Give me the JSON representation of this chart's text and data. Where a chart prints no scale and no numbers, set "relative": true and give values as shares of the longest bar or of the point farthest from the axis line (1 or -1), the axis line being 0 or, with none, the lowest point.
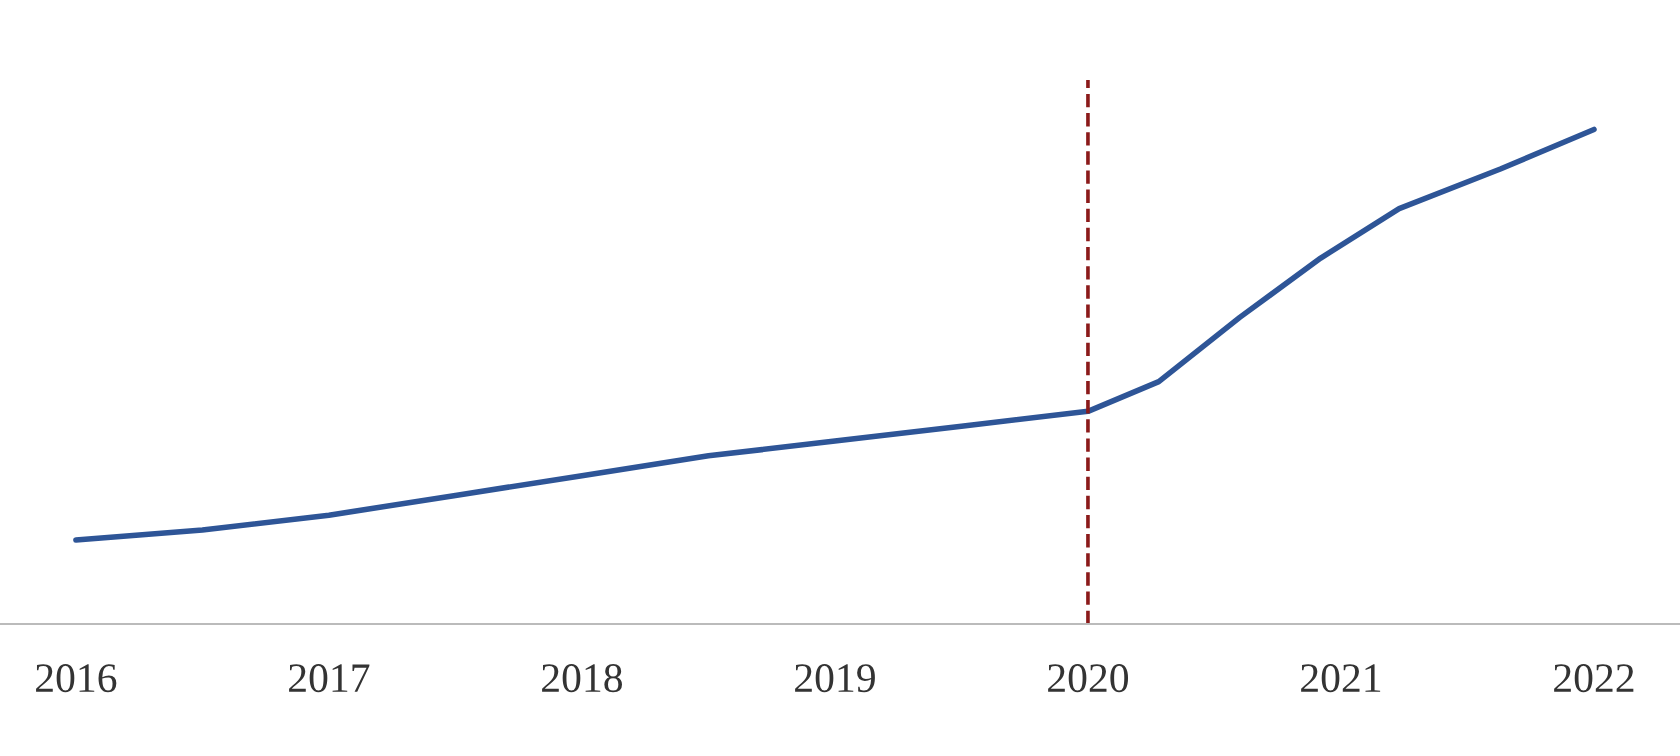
{
  "chart_data": {
    "type": "line",
    "relative": true,
    "xlim": [
      2015.7,
      2022.34
    ],
    "xticks": [
      2016,
      2017,
      2018,
      2019,
      2020,
      2021,
      2022
    ],
    "series": [
      {
        "color": "#2e5597",
        "x": [
          2016,
          2016.5,
          2017,
          2017.5,
          2018,
          2018.5,
          2019,
          2019.5,
          2020,
          2020.28,
          2020.6,
          2020.92,
          2021.23,
          2021.63,
          2022
        ],
        "values": [
          0.17,
          0.19,
          0.22,
          0.26,
          0.3,
          0.34,
          0.37,
          0.4,
          0.43,
          0.49,
          0.62,
          0.74,
          0.84,
          0.92,
          1
        ]
      }
    ],
    "ref_lines": [
      {
        "axis": "x",
        "value": 2020,
        "color": "#8b1a1a",
        "line_style": "dashed"
      }
    ],
    "grid": false,
    "legend": false,
    "marker": "none",
    "line_style": "solid"
  }
}
